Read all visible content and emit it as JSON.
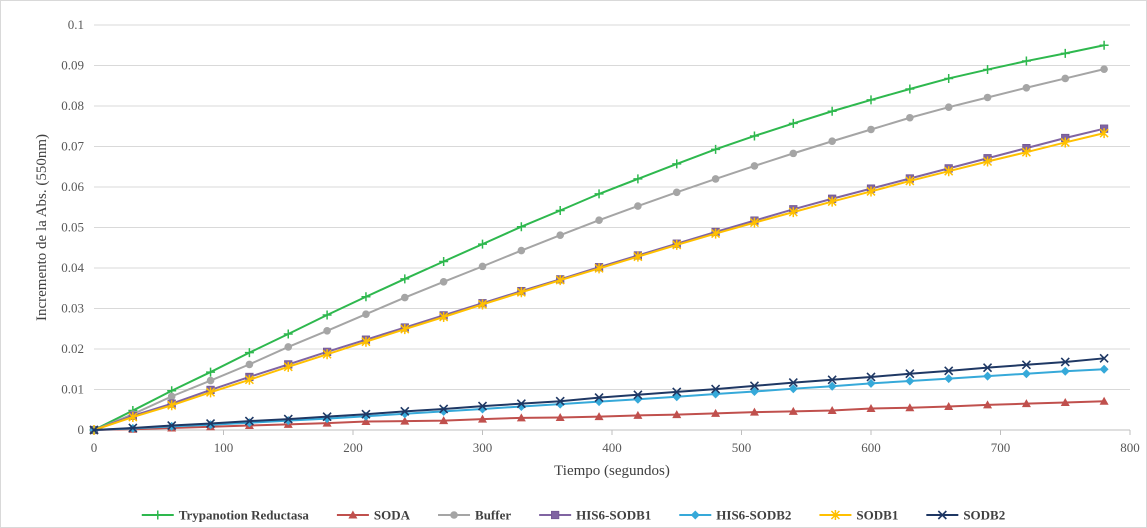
{
  "chart_data": {
    "type": "line",
    "title": "",
    "xlabel": "Tiempo  (segundos)",
    "ylabel": "Incremento  de la Abs. (550nm)",
    "xlim": [
      0,
      800
    ],
    "ylim": [
      0,
      0.1
    ],
    "x_ticks": [
      "0",
      "100",
      "200",
      "300",
      "400",
      "500",
      "600",
      "700",
      "800"
    ],
    "y_ticks": [
      "0",
      "0.01",
      "0.02",
      "0.03",
      "0.04",
      "0.05",
      "0.06",
      "0.07",
      "0.08",
      "0.09",
      "0.1"
    ],
    "grid": "horizontal",
    "legend_position": "bottom",
    "x": [
      0,
      30,
      60,
      90,
      120,
      150,
      180,
      210,
      240,
      270,
      300,
      330,
      360,
      390,
      420,
      450,
      480,
      510,
      540,
      570,
      600,
      630,
      660,
      690,
      720,
      750,
      780
    ],
    "series": [
      {
        "name": "Trypanotion Reductasa",
        "color": "#2eb84e",
        "marker": "plus",
        "values": [
          0,
          0.0048,
          0.0097,
          0.0143,
          0.0191,
          0.0237,
          0.0284,
          0.0329,
          0.0373,
          0.0416,
          0.0459,
          0.0502,
          0.0542,
          0.0583,
          0.062,
          0.0657,
          0.0693,
          0.0726,
          0.0757,
          0.0787,
          0.0815,
          0.0842,
          0.0868,
          0.089,
          0.0911,
          0.093,
          0.095
        ]
      },
      {
        "name": "SODA",
        "color": "#c0504d",
        "marker": "triangle",
        "values": [
          0,
          0.0002,
          0.0005,
          0.0008,
          0.0011,
          0.0014,
          0.0017,
          0.0021,
          0.0022,
          0.0023,
          0.0027,
          0.003,
          0.0031,
          0.0033,
          0.0036,
          0.0038,
          0.0041,
          0.0044,
          0.0046,
          0.0048,
          0.0053,
          0.0055,
          0.0058,
          0.0062,
          0.0065,
          0.0068,
          0.0071
        ]
      },
      {
        "name": "Buffer",
        "color": "#a5a5a5",
        "marker": "circle",
        "values": [
          0,
          0.0039,
          0.0083,
          0.0122,
          0.0162,
          0.0205,
          0.0245,
          0.0286,
          0.0327,
          0.0366,
          0.0404,
          0.0443,
          0.0481,
          0.0518,
          0.0553,
          0.0587,
          0.062,
          0.0652,
          0.0683,
          0.0713,
          0.0742,
          0.0771,
          0.0797,
          0.0821,
          0.0845,
          0.0868,
          0.0891
        ]
      },
      {
        "name": "HIS6-SODB1",
        "color": "#8064a2",
        "marker": "square",
        "values": [
          0,
          0.0035,
          0.0065,
          0.0099,
          0.0131,
          0.0162,
          0.0193,
          0.0223,
          0.0253,
          0.0283,
          0.0313,
          0.0343,
          0.0372,
          0.0402,
          0.0431,
          0.046,
          0.0489,
          0.0517,
          0.0545,
          0.0571,
          0.0596,
          0.0621,
          0.0646,
          0.0671,
          0.0696,
          0.0721,
          0.0744
        ]
      },
      {
        "name": "HIS6-SODB2",
        "color": "#36a9d9",
        "marker": "diamond",
        "values": [
          0,
          0.0004,
          0.0009,
          0.0013,
          0.0018,
          0.0023,
          0.0028,
          0.0034,
          0.004,
          0.0046,
          0.0052,
          0.0058,
          0.0064,
          0.007,
          0.0076,
          0.0082,
          0.0089,
          0.0095,
          0.0102,
          0.0108,
          0.0115,
          0.0121,
          0.0127,
          0.0133,
          0.0139,
          0.0145,
          0.015
        ]
      },
      {
        "name": "SODB1",
        "color": "#ffc000",
        "marker": "star",
        "values": [
          0,
          0.0032,
          0.0061,
          0.0093,
          0.0124,
          0.0156,
          0.0187,
          0.0218,
          0.0249,
          0.0279,
          0.031,
          0.034,
          0.037,
          0.0399,
          0.0428,
          0.0457,
          0.0485,
          0.0512,
          0.0538,
          0.0564,
          0.0589,
          0.0615,
          0.0639,
          0.0663,
          0.0686,
          0.071,
          0.0733
        ]
      },
      {
        "name": "SODB2",
        "color": "#1f3864",
        "marker": "x",
        "values": [
          0,
          0.0005,
          0.0011,
          0.0016,
          0.0022,
          0.0027,
          0.0033,
          0.0039,
          0.0046,
          0.0052,
          0.0059,
          0.0065,
          0.0071,
          0.008,
          0.0087,
          0.0094,
          0.0101,
          0.0109,
          0.0117,
          0.0124,
          0.0131,
          0.0139,
          0.0146,
          0.0154,
          0.0161,
          0.0168,
          0.0177
        ]
      }
    ]
  }
}
